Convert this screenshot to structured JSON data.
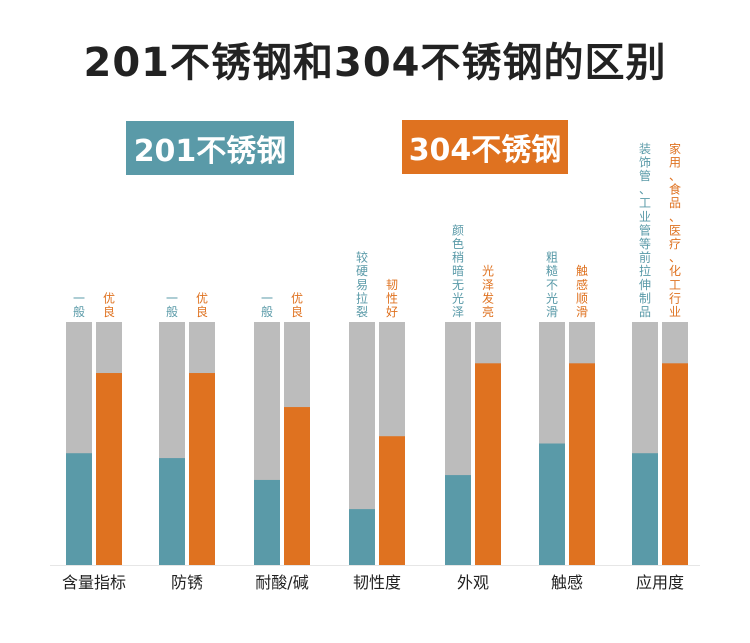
{
  "title": "201不锈钢和304不锈钢的区别",
  "legend": {
    "label_201": "201不锈钢",
    "label_304": "304不锈钢",
    "color_201": "#5a9aa8",
    "color_304": "#df7220"
  },
  "colors": {
    "track": "#bcbcbc"
  },
  "chart_data": {
    "type": "bar",
    "title": "201不锈钢和304不锈钢的区别",
    "categories": [
      "含量指标",
      "防锈",
      "耐酸/碱",
      "韧性度",
      "外观",
      "触感",
      "应用度"
    ],
    "ylim": [
      0,
      100
    ],
    "series": [
      {
        "name": "201不锈钢",
        "values": [
          46,
          44,
          35,
          23,
          37,
          50,
          46
        ],
        "labels": [
          "一般",
          "一般",
          "一般",
          "较硬易拉裂",
          "颜色稍暗无光泽",
          "粗糙不光滑",
          "装饰管、工业管等前拉伸制品"
        ]
      },
      {
        "name": "304不锈钢",
        "values": [
          79,
          79,
          65,
          53,
          83,
          83,
          83
        ],
        "labels": [
          "优良",
          "优良",
          "优良",
          "韧性好",
          "光泽发亮",
          "触感顺滑",
          "家用、食品、医疗、化工行业"
        ]
      }
    ]
  }
}
